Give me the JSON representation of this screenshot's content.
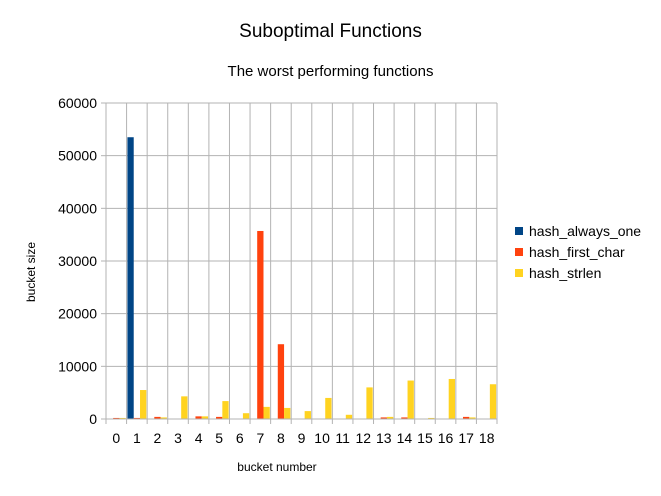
{
  "chart_data": {
    "type": "bar",
    "title": "Suboptimal Functions",
    "subtitle": "The worst performing functions",
    "xlabel": "bucket number",
    "ylabel": "bucket size",
    "ylim": [
      0,
      60000
    ],
    "yticks": [
      0,
      10000,
      20000,
      30000,
      40000,
      50000,
      60000
    ],
    "grid": true,
    "legend_position": "right",
    "categories": [
      "0",
      "1",
      "2",
      "3",
      "4",
      "5",
      "6",
      "7",
      "8",
      "9",
      "10",
      "11",
      "12",
      "13",
      "14",
      "15",
      "16",
      "17",
      "18"
    ],
    "series": [
      {
        "name": "hash_always_one",
        "color": "#004586",
        "values": [
          0,
          53500,
          0,
          0,
          0,
          0,
          0,
          0,
          0,
          0,
          0,
          0,
          0,
          0,
          0,
          0,
          0,
          0,
          0
        ]
      },
      {
        "name": "hash_first_char",
        "color": "#ff420e",
        "values": [
          200,
          200,
          400,
          0,
          500,
          400,
          0,
          35700,
          14200,
          0,
          0,
          0,
          0,
          300,
          300,
          0,
          0,
          400,
          0
        ]
      },
      {
        "name": "hash_strlen",
        "color": "#ffd320",
        "values": [
          200,
          5500,
          300,
          4300,
          500,
          3400,
          1100,
          2300,
          2100,
          1500,
          4000,
          800,
          6000,
          400,
          7300,
          200,
          7600,
          300,
          6600
        ]
      }
    ]
  }
}
